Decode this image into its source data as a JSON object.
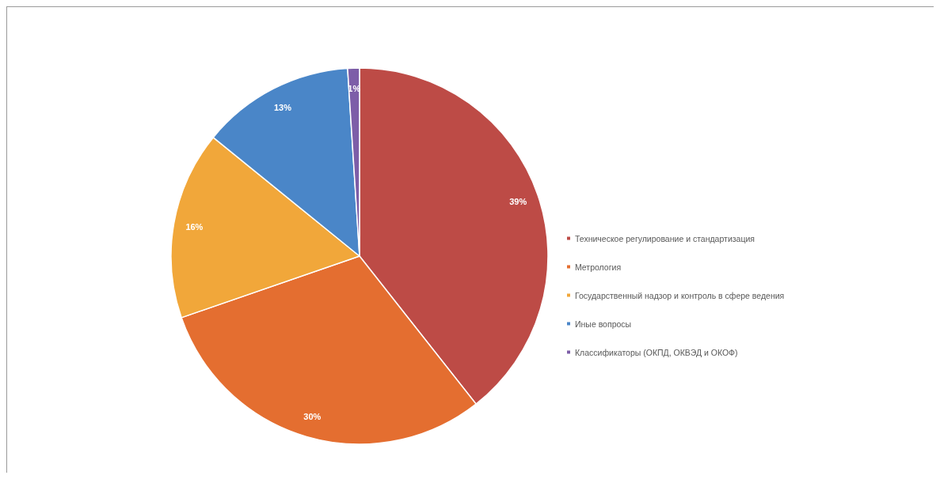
{
  "chart_data": {
    "type": "pie",
    "categories": [
      "Техническое регулирование и стандартизация",
      "Метрология",
      "Государственный надзор и контроль в сфере ведения",
      "Иные вопросы",
      "Классификаторы (ОКПД, ОКВЭД и ОКОФ)"
    ],
    "values": [
      39,
      30,
      16,
      13,
      1
    ],
    "colors": [
      "#bd4b46",
      "#e46e30",
      "#f1a73a",
      "#4a86c8",
      "#7d5ea8"
    ],
    "value_labels": [
      "39%",
      "30%",
      "16%",
      "13%",
      "1%"
    ],
    "legend": "right"
  }
}
